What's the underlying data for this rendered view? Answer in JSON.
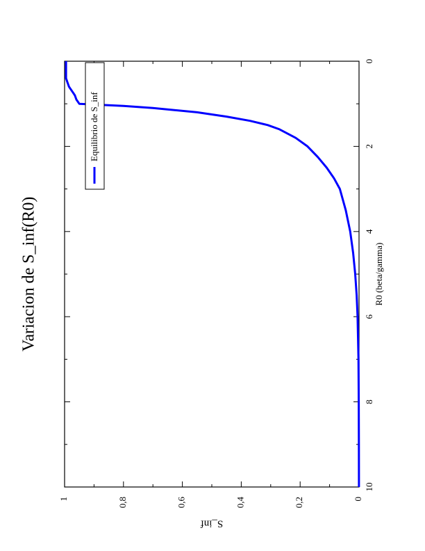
{
  "chart_data": {
    "type": "line",
    "title": "Variacion de S_inf(R0)",
    "xlabel": "R0 (beta/gamma)",
    "ylabel": "S_inf",
    "xlim": [
      0,
      10
    ],
    "ylim": [
      0,
      1
    ],
    "x_ticks": [
      "0",
      "2",
      "4",
      "6",
      "8",
      "10"
    ],
    "y_ticks": [
      "0",
      "0,2",
      "0,4",
      "0,6",
      "0,8",
      "1"
    ],
    "legend_position": "top-right",
    "rotation": "page rotated 90 degrees counter-clockwise",
    "colors": {
      "series": "#0000ff",
      "axes": "#000000"
    },
    "series": [
      {
        "name": "Equilibrio de S_inf",
        "x": [
          0,
          0.1,
          0.2,
          0.3,
          0.4,
          0.5,
          0.6,
          0.7,
          0.8,
          0.9,
          0.95,
          1.0,
          1.05,
          1.1,
          1.2,
          1.3,
          1.4,
          1.5,
          1.6,
          1.8,
          2.0,
          2.25,
          2.5,
          2.75,
          3.0,
          3.5,
          4.0,
          4.5,
          5.0,
          5.5,
          6.0,
          7.0,
          8.0,
          9.0,
          10.0
        ],
        "y": [
          0.995,
          0.995,
          0.995,
          0.995,
          0.995,
          0.99,
          0.985,
          0.975,
          0.965,
          0.96,
          0.955,
          0.95,
          0.8,
          0.7,
          0.55,
          0.45,
          0.37,
          0.31,
          0.27,
          0.215,
          0.175,
          0.14,
          0.11,
          0.085,
          0.065,
          0.045,
          0.03,
          0.02,
          0.013,
          0.008,
          0.005,
          0.002,
          0.001,
          0.0005,
          0.0002
        ]
      }
    ]
  }
}
